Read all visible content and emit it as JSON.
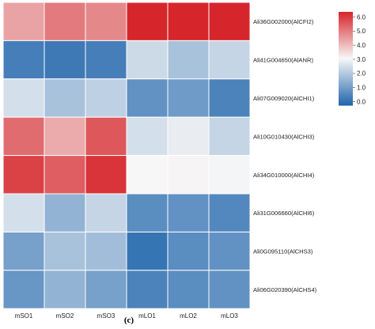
{
  "chart_data": {
    "type": "heatmap",
    "columns": [
      "mSO1",
      "mSO2",
      "mSO3",
      "mLO1",
      "mLO2",
      "mLO3"
    ],
    "rows": [
      "Ali36G002000(AlCFI2)",
      "Ali41G004650(AlANR)",
      "Ali07G009020(AlCHI1)",
      "Ali10G010430(AlCHI3)",
      "Ali34G010000(AlCHI4)",
      "Ali31G006660(AlCHI6)",
      "Ali0G095110(AlCHS3)",
      "Ali06G020390(AlCHS4)"
    ],
    "values": [
      [
        4.2,
        4.8,
        4.6,
        6.2,
        6.1,
        6.0
      ],
      [
        0.5,
        0.4,
        0.5,
        2.4,
        1.9,
        2.3
      ],
      [
        2.5,
        1.9,
        2.2,
        0.9,
        1.1,
        0.6
      ],
      [
        5.0,
        4.1,
        5.3,
        2.5,
        2.8,
        2.3
      ],
      [
        5.6,
        5.2,
        5.8,
        3.0,
        3.05,
        2.95
      ],
      [
        2.5,
        1.6,
        2.3,
        0.8,
        0.9,
        0.7
      ],
      [
        1.2,
        1.9,
        1.8,
        0.3,
        0.8,
        0.9
      ],
      [
        1.0,
        1.6,
        1.2,
        0.6,
        0.8,
        0.9
      ]
    ],
    "colorbar": {
      "ticks": [
        "0.0",
        "1.0",
        "2.0",
        "3.0",
        "4.0",
        "5.0",
        "6.0"
      ],
      "range": [
        0,
        6
      ],
      "colors": [
        "#2166ac",
        "#f7f7f7",
        "#d6262b"
      ]
    },
    "caption": "(c)"
  }
}
